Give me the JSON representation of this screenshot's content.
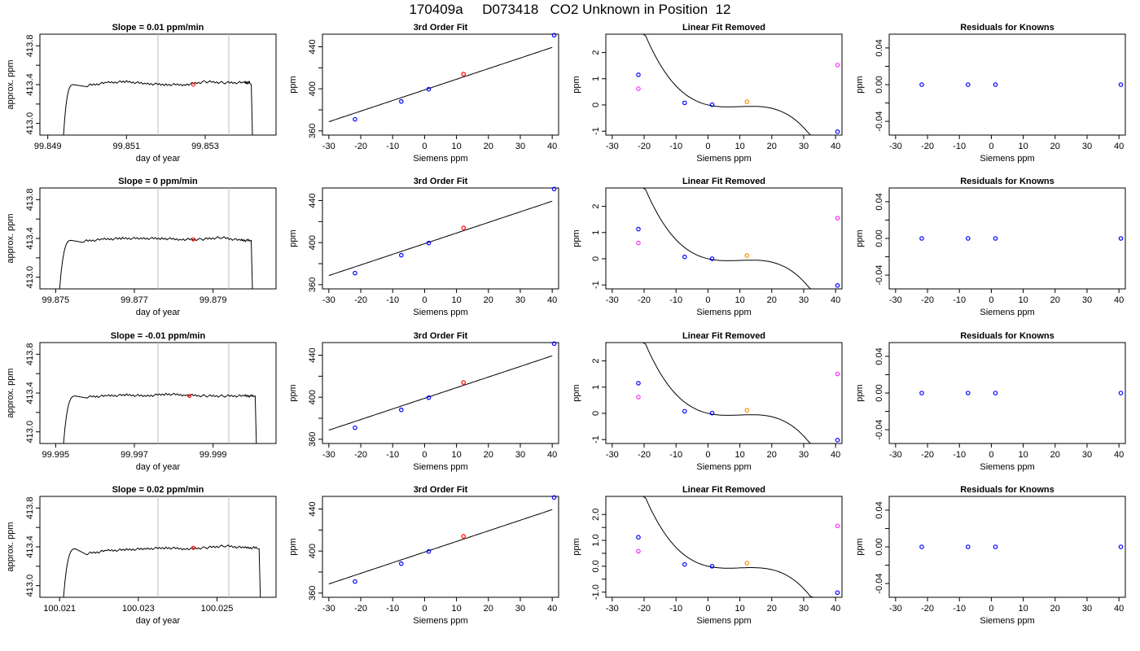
{
  "page_title": "170409a     D073418   CO2 Unknown in Position  12",
  "colors": {
    "line": "#000000",
    "known": "#0000ff",
    "unknown": "#ff0000",
    "fit": "#ff00ff",
    "marker": "#bebebe",
    "orange": "#ff8c00"
  },
  "chart_data": [
    {
      "type": "line",
      "title": "Slope =  0.01  ppm/min",
      "xlabel": "day of year",
      "ylabel": "approx. ppm",
      "xlim": [
        99.8488,
        99.8548
      ],
      "ylim": [
        412.88,
        413.92
      ],
      "xticks": [
        {
          "v": 99.849,
          "label": "99.849"
        },
        {
          "v": 99.851,
          "label": "99.851"
        },
        {
          "v": 99.853,
          "label": "99.853"
        }
      ],
      "yticks": [
        {
          "v": 413.0,
          "label": "413.0"
        },
        {
          "v": 413.4,
          "label": "413.4"
        },
        {
          "v": 413.8,
          "label": "413.8"
        }
      ],
      "minor_yticks": [
        413.2,
        413.6
      ],
      "markers": [
        99.8518,
        99.8536
      ],
      "trace_start": 99.8494,
      "trace_end": 99.8542,
      "plateau": 413.4,
      "plateau_ramp": 0.00025,
      "trace_x": [
        99.85,
        99.8505,
        99.851,
        99.8515,
        99.852,
        99.8525,
        99.853,
        99.8535,
        99.854
      ],
      "trace_y": [
        413.39,
        413.42,
        413.43,
        413.41,
        413.4,
        413.4,
        413.43,
        413.42,
        413.42
      ],
      "point": {
        "x": 99.8527,
        "y": 413.4
      }
    },
    {
      "type": "scatter",
      "title": "3rd Order Fit",
      "xlabel": "Siemens ppm",
      "ylabel": "ppm",
      "xlim": [
        -32,
        42
      ],
      "ylim": [
        356,
        452
      ],
      "xticks": [
        -30,
        -20,
        -10,
        0,
        10,
        20,
        30,
        40
      ],
      "yticks": [
        360,
        400,
        440
      ],
      "minor_yticks": [
        380,
        420
      ],
      "curve": {
        "x0": -30,
        "x1": 40,
        "coef": [
          399,
          1.0105,
          0,
          0
        ]
      },
      "knowns": [
        {
          "x": -21.8,
          "y": 371
        },
        {
          "x": -7.3,
          "y": 388
        },
        {
          "x": 1.3,
          "y": 399.6
        },
        {
          "x": 40.6,
          "y": 451
        }
      ],
      "unknown": {
        "x": 12.2,
        "y": 414
      }
    },
    {
      "type": "scatter",
      "title": "Linear Fit Removed",
      "xlabel": "Siemens ppm",
      "ylabel": "ppm",
      "xlim": [
        -32,
        42
      ],
      "ylim": [
        -1.15,
        2.7
      ],
      "xticks": [
        -30,
        -20,
        -10,
        0,
        10,
        20,
        30,
        40
      ],
      "yticks": [
        -1,
        0,
        1,
        2
      ],
      "curve": {
        "x0": -30,
        "x1": 40,
        "coef": [
          0,
          -0.0284,
          0.00331,
          -0.0001108
        ]
      },
      "knowns": [
        {
          "x": -21.8,
          "y": 1.15
        },
        {
          "x": -7.3,
          "y": 0.08
        },
        {
          "x": 1.3,
          "y": 0.01
        },
        {
          "x": 40.6,
          "y": -1.02
        }
      ],
      "unknown": {
        "x": 12.2,
        "y": 0.12
      },
      "fit_points": [
        {
          "x": -21.8,
          "y": 0.62
        },
        {
          "x": 40.6,
          "y": 1.52
        }
      ]
    },
    {
      "type": "scatter",
      "title": "Residuals for Knowns",
      "xlabel": "Siemens ppm",
      "ylabel": "ppm",
      "xlim": [
        -32,
        42
      ],
      "ylim": [
        -0.055,
        0.055
      ],
      "xticks": [
        -30,
        -20,
        -10,
        0,
        10,
        20,
        30,
        40
      ],
      "yticks": [
        {
          "v": -0.04,
          "label": "-0.04"
        },
        {
          "v": 0,
          "label": "0.00"
        },
        {
          "v": 0.04,
          "label": "0.04"
        }
      ],
      "minor_yticks": [
        -0.02,
        0.02
      ],
      "knowns": [
        {
          "x": -21.8,
          "y": 0
        },
        {
          "x": -7.3,
          "y": 0
        },
        {
          "x": 1.3,
          "y": 0
        },
        {
          "x": 40.6,
          "y": 0
        }
      ]
    },
    {
      "type": "line",
      "title": "Slope =  0  ppm/min",
      "xlabel": "day of year",
      "ylabel": "approx. ppm",
      "xlim": [
        99.8746,
        99.8806
      ],
      "ylim": [
        412.88,
        413.92
      ],
      "xticks": [
        {
          "v": 99.875,
          "label": "99.875"
        },
        {
          "v": 99.877,
          "label": "99.877"
        },
        {
          "v": 99.879,
          "label": "99.879"
        }
      ],
      "yticks": [
        {
          "v": 413.0,
          "label": "413.0"
        },
        {
          "v": 413.4,
          "label": "413.4"
        },
        {
          "v": 413.8,
          "label": "413.8"
        }
      ],
      "minor_yticks": [
        413.2,
        413.6
      ],
      "markers": [
        99.8776,
        99.8794
      ],
      "trace_start": 99.8751,
      "trace_end": 99.88,
      "plateau": 413.38,
      "plateau_ramp": 0.0003,
      "trace_x": [
        99.8757,
        99.8762,
        99.8767,
        99.8772,
        99.8777,
        99.8782,
        99.8787,
        99.8792,
        99.8797
      ],
      "trace_y": [
        413.37,
        413.39,
        413.4,
        413.4,
        413.4,
        413.39,
        413.39,
        413.41,
        413.38
      ],
      "point": {
        "x": 99.8785,
        "y": 413.39
      }
    },
    {
      "type": "scatter",
      "title": "3rd Order Fit",
      "xlabel": "Siemens ppm",
      "ylabel": "ppm",
      "xlim": [
        -32,
        42
      ],
      "ylim": [
        356,
        452
      ],
      "xticks": [
        -30,
        -20,
        -10,
        0,
        10,
        20,
        30,
        40
      ],
      "yticks": [
        360,
        400,
        440
      ],
      "minor_yticks": [
        380,
        420
      ],
      "curve": {
        "x0": -30,
        "x1": 40,
        "coef": [
          399,
          1.0105,
          0,
          0
        ]
      },
      "knowns": [
        {
          "x": -21.8,
          "y": 371
        },
        {
          "x": -7.3,
          "y": 388
        },
        {
          "x": 1.3,
          "y": 399.6
        },
        {
          "x": 40.6,
          "y": 451
        }
      ],
      "unknown": {
        "x": 12.2,
        "y": 414
      }
    },
    {
      "type": "scatter",
      "title": "Linear Fit Removed",
      "xlabel": "Siemens ppm",
      "ylabel": "ppm",
      "xlim": [
        -32,
        42
      ],
      "ylim": [
        -1.15,
        2.7
      ],
      "xticks": [
        -30,
        -20,
        -10,
        0,
        10,
        20,
        30,
        40
      ],
      "yticks": [
        -1,
        0,
        1,
        2
      ],
      "curve": {
        "x0": -30,
        "x1": 40,
        "coef": [
          0,
          -0.0284,
          0.00331,
          -0.0001108
        ]
      },
      "knowns": [
        {
          "x": -21.8,
          "y": 1.13
        },
        {
          "x": -7.3,
          "y": 0.07
        },
        {
          "x": 1.3,
          "y": 0.0
        },
        {
          "x": 40.6,
          "y": -1.02
        }
      ],
      "unknown": {
        "x": 12.2,
        "y": 0.12
      },
      "fit_points": [
        {
          "x": -21.8,
          "y": 0.6
        },
        {
          "x": 40.6,
          "y": 1.55
        }
      ]
    },
    {
      "type": "scatter",
      "title": "Residuals for Knowns",
      "xlabel": "Siemens ppm",
      "ylabel": "ppm",
      "xlim": [
        -32,
        42
      ],
      "ylim": [
        -0.055,
        0.055
      ],
      "xticks": [
        -30,
        -20,
        -10,
        0,
        10,
        20,
        30,
        40
      ],
      "yticks": [
        {
          "v": -0.04,
          "label": "-0.04"
        },
        {
          "v": 0,
          "label": "0.00"
        },
        {
          "v": 0.04,
          "label": "0.04"
        }
      ],
      "minor_yticks": [
        -0.02,
        0.02
      ],
      "knowns": [
        {
          "x": -21.8,
          "y": 0
        },
        {
          "x": -7.3,
          "y": 0
        },
        {
          "x": 1.3,
          "y": 0
        },
        {
          "x": 40.6,
          "y": 0
        }
      ]
    },
    {
      "type": "line",
      "title": "Slope =  -0.01  ppm/min",
      "xlabel": "day of year",
      "ylabel": "approx. ppm",
      "xlim": [
        99.9946,
        100.0006
      ],
      "ylim": [
        412.88,
        413.92
      ],
      "xticks": [
        {
          "v": 99.995,
          "label": "99.995"
        },
        {
          "v": 99.997,
          "label": "99.997"
        },
        {
          "v": 99.999,
          "label": "99.999"
        }
      ],
      "yticks": [
        {
          "v": 413.0,
          "label": "413.0"
        },
        {
          "v": 413.4,
          "label": "413.4"
        },
        {
          "v": 413.8,
          "label": "413.8"
        }
      ],
      "minor_yticks": [
        413.2,
        413.6
      ],
      "markers": [
        99.9976,
        99.9994
      ],
      "trace_start": 99.9952,
      "trace_end": 100.0001,
      "plateau": 413.37,
      "plateau_ramp": 0.0003,
      "trace_x": [
        99.9958,
        99.9963,
        99.9968,
        99.9973,
        99.9978,
        99.9983,
        99.9988,
        99.9993,
        99.9998
      ],
      "trace_y": [
        413.36,
        413.37,
        413.38,
        413.37,
        413.39,
        413.38,
        413.37,
        413.37,
        413.37
      ],
      "point": {
        "x": 99.9984,
        "y": 413.37
      }
    },
    {
      "type": "scatter",
      "title": "3rd Order Fit",
      "xlabel": "Siemens ppm",
      "ylabel": "ppm",
      "xlim": [
        -32,
        42
      ],
      "ylim": [
        356,
        452
      ],
      "xticks": [
        -30,
        -20,
        -10,
        0,
        10,
        20,
        30,
        40
      ],
      "yticks": [
        360,
        400,
        440
      ],
      "minor_yticks": [
        380,
        420
      ],
      "curve": {
        "x0": -30,
        "x1": 40,
        "coef": [
          399,
          1.0105,
          0,
          0
        ]
      },
      "knowns": [
        {
          "x": -21.8,
          "y": 371
        },
        {
          "x": -7.3,
          "y": 388
        },
        {
          "x": 1.3,
          "y": 399.6
        },
        {
          "x": 40.6,
          "y": 451
        }
      ],
      "unknown": {
        "x": 12.2,
        "y": 414
      }
    },
    {
      "type": "scatter",
      "title": "Linear Fit Removed",
      "xlabel": "Siemens ppm",
      "ylabel": "ppm",
      "xlim": [
        -32,
        42
      ],
      "ylim": [
        -1.15,
        2.7
      ],
      "xticks": [
        -30,
        -20,
        -10,
        0,
        10,
        20,
        30,
        40
      ],
      "yticks": [
        -1,
        0,
        1,
        2
      ],
      "curve": {
        "x0": -30,
        "x1": 40,
        "coef": [
          0,
          -0.0284,
          0.00331,
          -0.0001108
        ]
      },
      "knowns": [
        {
          "x": -21.8,
          "y": 1.15
        },
        {
          "x": -7.3,
          "y": 0.08
        },
        {
          "x": 1.3,
          "y": 0.01
        },
        {
          "x": 40.6,
          "y": -1.02
        }
      ],
      "unknown": {
        "x": 12.2,
        "y": 0.12
      },
      "fit_points": [
        {
          "x": -21.8,
          "y": 0.62
        },
        {
          "x": 40.6,
          "y": 1.5
        }
      ]
    },
    {
      "type": "scatter",
      "title": "Residuals for Knowns",
      "xlabel": "Siemens ppm",
      "ylabel": "ppm",
      "xlim": [
        -32,
        42
      ],
      "ylim": [
        -0.055,
        0.055
      ],
      "xticks": [
        -30,
        -20,
        -10,
        0,
        10,
        20,
        30,
        40
      ],
      "yticks": [
        {
          "v": -0.04,
          "label": "-0.04"
        },
        {
          "v": 0,
          "label": "0.00"
        },
        {
          "v": 0.04,
          "label": "0.04"
        }
      ],
      "minor_yticks": [
        -0.02,
        0.02
      ],
      "knowns": [
        {
          "x": -21.8,
          "y": 0
        },
        {
          "x": -7.3,
          "y": 0
        },
        {
          "x": 1.3,
          "y": 0
        },
        {
          "x": 40.6,
          "y": 0
        }
      ]
    },
    {
      "type": "line",
      "title": "Slope =  0.02  ppm/min",
      "xlabel": "day of year",
      "ylabel": "approx. ppm",
      "xlim": [
        100.0205,
        100.0265
      ],
      "ylim": [
        412.88,
        413.92
      ],
      "xticks": [
        {
          "v": 100.021,
          "label": "100.021"
        },
        {
          "v": 100.023,
          "label": "100.023"
        },
        {
          "v": 100.025,
          "label": "100.025"
        }
      ],
      "yticks": [
        {
          "v": 413.0,
          "label": "413.0"
        },
        {
          "v": 413.4,
          "label": "413.4"
        },
        {
          "v": 413.8,
          "label": "413.8"
        }
      ],
      "minor_yticks": [
        413.2,
        413.6
      ],
      "markers": [
        100.0235,
        100.0253
      ],
      "trace_start": 100.0211,
      "trace_end": 100.0261,
      "plateau": 413.38,
      "plateau_ramp": 0.0003,
      "trace_x": [
        100.0217,
        100.0222,
        100.0227,
        100.0232,
        100.0237,
        100.0242,
        100.0247,
        100.0252,
        100.0257
      ],
      "trace_y": [
        413.33,
        413.36,
        413.37,
        413.38,
        413.39,
        413.38,
        413.39,
        413.41,
        413.39
      ],
      "point": {
        "x": 100.0244,
        "y": 413.39
      }
    },
    {
      "type": "scatter",
      "title": "3rd Order Fit",
      "xlabel": "Siemens ppm",
      "ylabel": "ppm",
      "xlim": [
        -32,
        42
      ],
      "ylim": [
        356,
        452
      ],
      "xticks": [
        -30,
        -20,
        -10,
        0,
        10,
        20,
        30,
        40
      ],
      "yticks": [
        360,
        400,
        440
      ],
      "minor_yticks": [
        380,
        420
      ],
      "curve": {
        "x0": -30,
        "x1": 40,
        "coef": [
          399,
          1.0105,
          0,
          0
        ]
      },
      "knowns": [
        {
          "x": -21.8,
          "y": 371
        },
        {
          "x": -7.3,
          "y": 388
        },
        {
          "x": 1.3,
          "y": 399.6
        },
        {
          "x": 40.6,
          "y": 451
        }
      ],
      "unknown": {
        "x": 12.2,
        "y": 414
      }
    },
    {
      "type": "scatter",
      "title": "Linear Fit Removed",
      "xlabel": "Siemens ppm",
      "ylabel": "ppm",
      "xlim": [
        -32,
        42
      ],
      "ylim": [
        -1.2,
        2.7
      ],
      "xticks": [
        -30,
        -20,
        -10,
        0,
        10,
        20,
        30,
        40
      ],
      "yticks": [
        {
          "v": -1,
          "label": "-1.0"
        },
        {
          "v": 0,
          "label": "0.0"
        },
        {
          "v": 1,
          "label": "1.0"
        },
        {
          "v": 2,
          "label": "2.0"
        }
      ],
      "minor_yticks": [
        -0.5,
        0.5,
        1.5
      ],
      "curve": {
        "x0": -30,
        "x1": 40,
        "coef": [
          0,
          -0.0284,
          0.00331,
          -0.0001108
        ]
      },
      "knowns": [
        {
          "x": -21.8,
          "y": 1.12
        },
        {
          "x": -7.3,
          "y": 0.07
        },
        {
          "x": 1.3,
          "y": 0.0
        },
        {
          "x": 40.6,
          "y": -1.02
        }
      ],
      "unknown": {
        "x": 12.2,
        "y": 0.12
      },
      "fit_points": [
        {
          "x": -21.8,
          "y": 0.58
        },
        {
          "x": 40.6,
          "y": 1.56
        }
      ]
    },
    {
      "type": "scatter",
      "title": "Residuals for Knowns",
      "xlabel": "Siemens ppm",
      "ylabel": "ppm",
      "xlim": [
        -32,
        42
      ],
      "ylim": [
        -0.055,
        0.055
      ],
      "xticks": [
        -30,
        -20,
        -10,
        0,
        10,
        20,
        30,
        40
      ],
      "yticks": [
        {
          "v": -0.04,
          "label": "-0.04"
        },
        {
          "v": 0,
          "label": "0.00"
        },
        {
          "v": 0.04,
          "label": "0.04"
        }
      ],
      "minor_yticks": [
        -0.02,
        0.02
      ],
      "knowns": [
        {
          "x": -21.8,
          "y": 0
        },
        {
          "x": -7.3,
          "y": 0
        },
        {
          "x": 1.3,
          "y": 0
        },
        {
          "x": 40.6,
          "y": 0
        }
      ]
    }
  ]
}
